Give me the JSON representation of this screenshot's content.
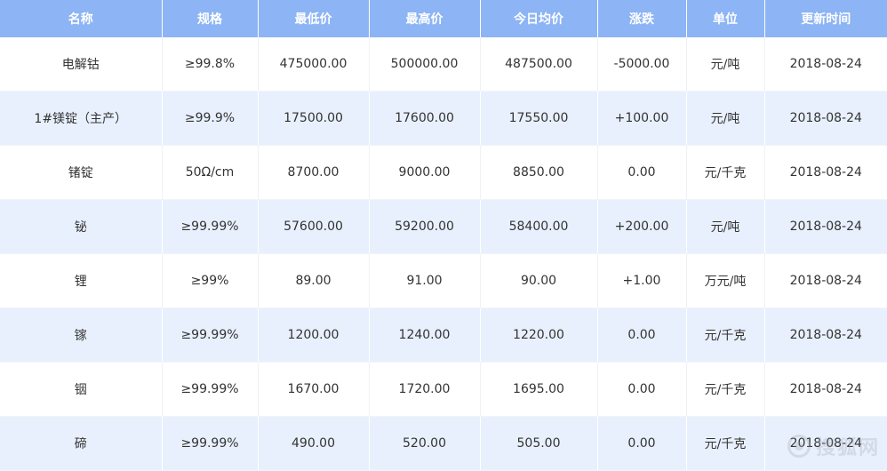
{
  "colors": {
    "header_bg": "#8db4f4",
    "row_alt_bg": "#e8f0fd",
    "up": "#d4202a",
    "down": "#2e9e2e"
  },
  "columns": [
    "名称",
    "规格",
    "最低价",
    "最高价",
    "今日均价",
    "涨跌",
    "单位",
    "更新时间"
  ],
  "rows": [
    {
      "name": "电解钴",
      "spec": "≥99.8%",
      "low": "475000.00",
      "high": "500000.00",
      "avg": "487500.00",
      "change": "-5000.00",
      "unit": "元/吨",
      "date": "2018-08-24",
      "low_color": "down",
      "high_color": "down",
      "change_color": "down"
    },
    {
      "name": "1#镁锭（主产）",
      "spec": "≥99.9%",
      "low": "17500.00",
      "high": "17600.00",
      "avg": "17550.00",
      "change": "+100.00",
      "unit": "元/吨",
      "date": "2018-08-24",
      "low_color": "up",
      "high_color": "up",
      "change_color": "up"
    },
    {
      "name": "锗锭",
      "spec": "50Ω/cm",
      "low": "8700.00",
      "high": "9000.00",
      "avg": "8850.00",
      "change": "0.00",
      "unit": "元/千克",
      "date": "2018-08-24",
      "low_color": "normal",
      "high_color": "normal",
      "change_color": "normal"
    },
    {
      "name": "铋",
      "spec": "≥99.99%",
      "low": "57600.00",
      "high": "59200.00",
      "avg": "58400.00",
      "change": "+200.00",
      "unit": "元/吨",
      "date": "2018-08-24",
      "low_color": "normal",
      "high_color": "up",
      "change_color": "up"
    },
    {
      "name": "锂",
      "spec": "≥99%",
      "low": "89.00",
      "high": "91.00",
      "avg": "90.00",
      "change": "+1.00",
      "unit": "万元/吨",
      "date": "2018-08-24",
      "low_color": "up",
      "high_color": "up",
      "change_color": "up"
    },
    {
      "name": "镓",
      "spec": "≥99.99%",
      "low": "1200.00",
      "high": "1240.00",
      "avg": "1220.00",
      "change": "0.00",
      "unit": "元/千克",
      "date": "2018-08-24",
      "low_color": "normal",
      "high_color": "normal",
      "change_color": "normal"
    },
    {
      "name": "铟",
      "spec": "≥99.99%",
      "low": "1670.00",
      "high": "1720.00",
      "avg": "1695.00",
      "change": "0.00",
      "unit": "元/千克",
      "date": "2018-08-24",
      "low_color": "normal",
      "high_color": "normal",
      "change_color": "normal"
    },
    {
      "name": "碲",
      "spec": "≥99.99%",
      "low": "490.00",
      "high": "520.00",
      "avg": "505.00",
      "change": "0.00",
      "unit": "元/千克",
      "date": "2018-08-24",
      "low_color": "normal",
      "high_color": "normal",
      "change_color": "normal"
    }
  ],
  "watermark": {
    "icon": "site-logo-icon",
    "text": "搜狐网"
  }
}
